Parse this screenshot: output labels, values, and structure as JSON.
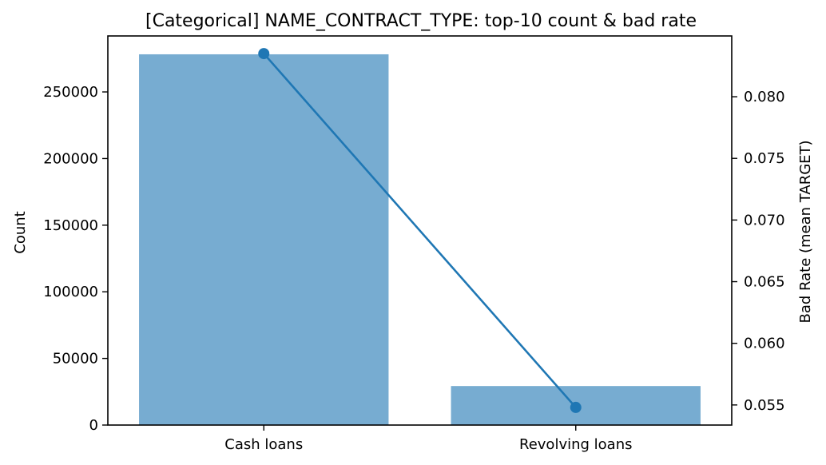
{
  "chart_data": {
    "type": "bar",
    "title": "[Categorical] NAME_CONTRACT_TYPE: top-10 count & bad rate",
    "categories": [
      "Cash loans",
      "Revolving loans"
    ],
    "xlabel": "",
    "series": [
      {
        "values": [
          278232,
          29279
        ],
        "axis": "left",
        "kind": "bar",
        "color": "#77acd1"
      },
      {
        "values": [
          0.0835,
          0.0548
        ],
        "axis": "right",
        "kind": "line",
        "color": "#1f77b4"
      }
    ],
    "y_left": {
      "label": "Count",
      "ylim": [
        0,
        292000
      ],
      "ticks": [
        0,
        50000,
        100000,
        150000,
        200000,
        250000
      ]
    },
    "y_right": {
      "label": "Bad Rate (mean TARGET)",
      "ylim": [
        0.05337,
        0.08493
      ],
      "ticks": [
        "0.055",
        "0.060",
        "0.065",
        "0.070",
        "0.075",
        "0.080"
      ]
    },
    "grid": false,
    "legend": "none"
  }
}
